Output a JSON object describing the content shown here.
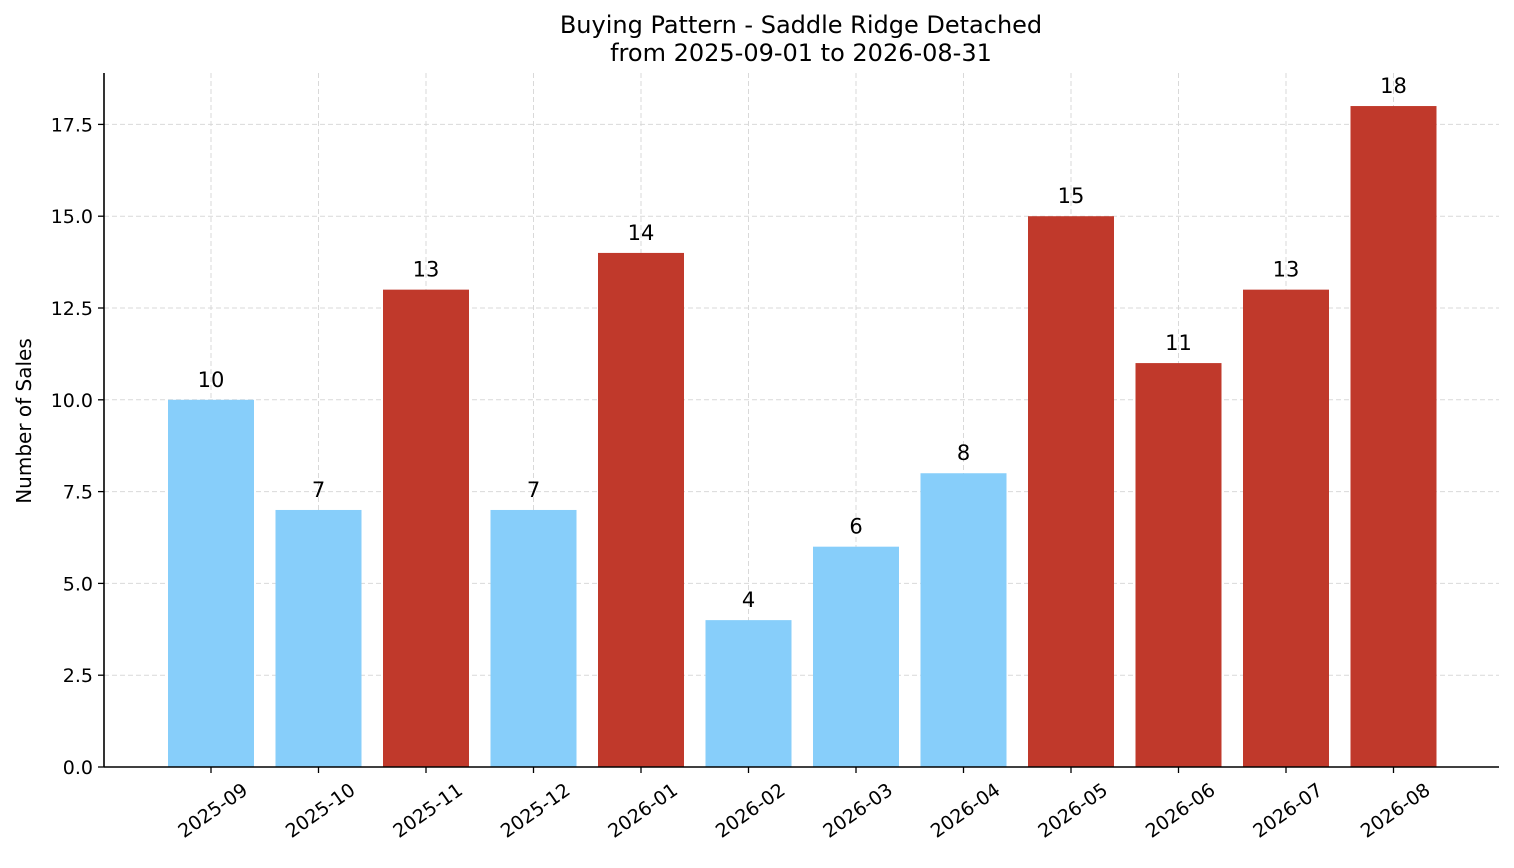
{
  "chart_data": {
    "type": "bar",
    "title": "Buying Pattern - Saddle Ridge Detached",
    "subtitle": "from 2025-09-01 to 2026-08-31",
    "xlabel": "",
    "ylabel": "Number of Sales",
    "categories": [
      "2025-09",
      "2025-10",
      "2025-11",
      "2025-12",
      "2026-01",
      "2026-02",
      "2026-03",
      "2026-04",
      "2026-05",
      "2026-06",
      "2026-07",
      "2026-08"
    ],
    "values": [
      10,
      7,
      13,
      7,
      14,
      4,
      6,
      8,
      15,
      11,
      13,
      18
    ],
    "data_labels": [
      "10",
      "7",
      "13",
      "7",
      "14",
      "4",
      "6",
      "8",
      "15",
      "11",
      "13",
      "18"
    ],
    "bar_colors": [
      "#87CEFA",
      "#87CEFA",
      "#C0392B",
      "#87CEFA",
      "#C0392B",
      "#87CEFA",
      "#87CEFA",
      "#87CEFA",
      "#C0392B",
      "#C0392B",
      "#C0392B",
      "#C0392B"
    ],
    "ylim": [
      0,
      18.9
    ],
    "yticks": [
      0,
      2.5,
      5,
      7.5,
      10,
      12.5,
      15,
      17.5
    ],
    "ytick_labels": [
      "0.0",
      "2.5",
      "5.0",
      "7.5",
      "10.0",
      "12.5",
      "15.0",
      "17.5"
    ],
    "xtick_rotation_deg": 35,
    "grid": true,
    "legend": "none"
  }
}
